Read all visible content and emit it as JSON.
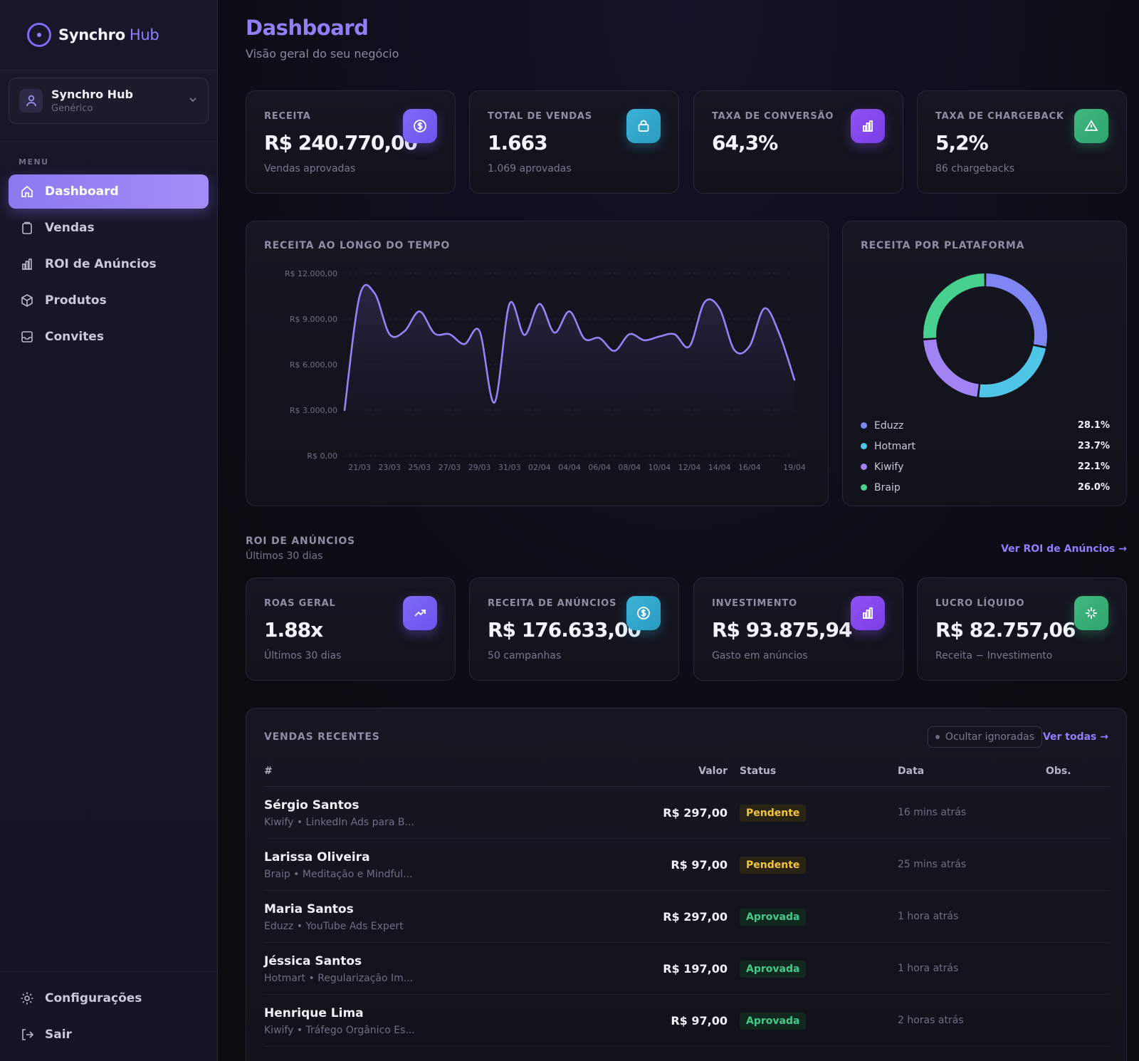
{
  "brand": {
    "name": "Synchro",
    "suffix": "Hub"
  },
  "workspace": {
    "name": "Synchro Hub",
    "type": "Genérico"
  },
  "sidebar": {
    "menu_label": "MENU",
    "items": [
      {
        "label": "Dashboard",
        "icon": "home-icon",
        "active": true
      },
      {
        "label": "Vendas",
        "icon": "clipboard-icon"
      },
      {
        "label": "ROI de Anúncios",
        "icon": "bar-chart-icon"
      },
      {
        "label": "Produtos",
        "icon": "box-icon"
      },
      {
        "label": "Convites",
        "icon": "inbox-icon"
      }
    ],
    "bottom": [
      {
        "label": "Configurações",
        "icon": "gear-icon"
      },
      {
        "label": "Sair",
        "icon": "logout-icon"
      }
    ]
  },
  "header": {
    "title": "Dashboard",
    "subtitle": "Visão geral do seu negócio"
  },
  "stats": [
    {
      "label": "RECEITA",
      "value": "R$ 240.770,00",
      "sub": "Vendas aprovadas",
      "icon": "dollar-icon",
      "color": "#7460f3"
    },
    {
      "label": "TOTAL DE VENDAS",
      "value": "1.663",
      "sub": "1.069 aprovadas",
      "icon": "bag-icon",
      "color": "#33a8cf"
    },
    {
      "label": "TAXA DE CONVERSÃO",
      "value": "64,3%",
      "sub": "",
      "icon": "bar-chart-icon",
      "color": "#8548ee"
    },
    {
      "label": "TAXA DE CHARGEBACK",
      "value": "5,2%",
      "sub": "86 chargebacks",
      "icon": "alert-triangle-icon",
      "color": "#36ae76"
    }
  ],
  "revenue_chart": {
    "title": "RECEITA AO LONGO DO TEMPO",
    "y_ticks": [
      "R$ 12.000,00",
      "R$ 9.000,00",
      "R$ 6.000,00",
      "R$ 3.000,00",
      "R$ 0,00"
    ],
    "x_ticks": [
      "21/03",
      "23/03",
      "25/03",
      "27/03",
      "29/03",
      "31/03",
      "02/04",
      "04/04",
      "06/04",
      "08/04",
      "10/04",
      "12/04",
      "14/04",
      "16/04",
      "19/04"
    ],
    "line_color": "#8f85f5"
  },
  "platform_chart": {
    "title": "RECEITA POR PLATAFORMA",
    "items": [
      {
        "name": "Eduzz",
        "pct": "28.1%",
        "color": "#7f86f4"
      },
      {
        "name": "Hotmart",
        "pct": "23.7%",
        "color": "#4fc6e8"
      },
      {
        "name": "Kiwify",
        "pct": "22.1%",
        "color": "#a283f4"
      },
      {
        "name": "Braip",
        "pct": "26.0%",
        "color": "#47d08e"
      }
    ]
  },
  "chart_data": [
    {
      "type": "area",
      "title": "RECEITA AO LONGO DO TEMPO",
      "xlabel": "",
      "ylabel": "",
      "ylim": [
        0,
        12000
      ],
      "x": [
        "20/03",
        "21/03",
        "22/03",
        "23/03",
        "24/03",
        "25/03",
        "26/03",
        "27/03",
        "28/03",
        "29/03",
        "30/03",
        "31/03",
        "01/04",
        "02/04",
        "03/04",
        "04/04",
        "05/04",
        "06/04",
        "07/04",
        "08/04",
        "09/04",
        "10/04",
        "11/04",
        "12/04",
        "13/04",
        "14/04",
        "15/04",
        "16/04",
        "17/04",
        "18/04",
        "19/04"
      ],
      "series": [
        {
          "values": [
            3000,
            10500,
            10700,
            8000,
            8200,
            9500,
            8050,
            8000,
            7350,
            8200,
            3500,
            10000,
            7950,
            10000,
            8100,
            9500,
            7700,
            7750,
            6900,
            8000,
            7600,
            7850,
            8000,
            7200,
            10100,
            9700,
            6950,
            7200,
            9700,
            8000,
            5000
          ]
        }
      ],
      "grid": true
    },
    {
      "type": "pie",
      "title": "RECEITA POR PLATAFORMA",
      "categories": [
        "Eduzz",
        "Hotmart",
        "Kiwify",
        "Braip"
      ],
      "values": [
        28.1,
        23.7,
        22.1,
        26.0
      ]
    }
  ],
  "roi": {
    "title": "ROI DE ANÚNCIOS",
    "subtitle": "Últimos 30 dias",
    "link": "Ver ROI de Anúncios →",
    "cards": [
      {
        "label": "ROAS GERAL",
        "value": "1.88x",
        "sub": "Últimos 30 dias",
        "icon": "trending-up-icon",
        "color": "#7460f3"
      },
      {
        "label": "RECEITA DE ANÚNCIOS",
        "value": "R$ 176.633,00",
        "sub": "50 campanhas",
        "icon": "dollar-icon",
        "color": "#33a8cf"
      },
      {
        "label": "INVESTIMENTO",
        "value": "R$ 93.875,94",
        "sub": "Gasto em anúncios",
        "icon": "bar-chart-icon",
        "color": "#8548ee"
      },
      {
        "label": "LUCRO LÍQUIDO",
        "value": "R$ 82.757,06",
        "sub": "Receita − Investimento",
        "icon": "sparkle-icon",
        "color": "#36ae76"
      }
    ]
  },
  "sales": {
    "title": "VENDAS RECENTES",
    "toggle": "Ocultar ignoradas",
    "view_all": "Ver todas →",
    "columns": {
      "id": "#",
      "value": "Valor",
      "status": "Status",
      "date": "Data",
      "obs": "Obs."
    },
    "rows": [
      {
        "name": "Sérgio Santos",
        "sub": "Kiwify • LinkedIn Ads para B...",
        "value": "R$ 297,00",
        "status": "Pendente",
        "date": "16 mins atrás"
      },
      {
        "name": "Larissa Oliveira",
        "sub": "Braip • Meditação e Mindful...",
        "value": "R$ 97,00",
        "status": "Pendente",
        "date": "25 mins atrás"
      },
      {
        "name": "Maria Santos",
        "sub": "Eduzz • YouTube Ads Expert",
        "value": "R$ 297,00",
        "status": "Aprovada",
        "date": "1 hora atrás"
      },
      {
        "name": "Jéssica Santos",
        "sub": "Hotmart • Regularização Im...",
        "value": "R$ 197,00",
        "status": "Aprovada",
        "date": "1 hora atrás"
      },
      {
        "name": "Henrique Lima",
        "sub": "Kiwify • Tráfego Orgânico Es...",
        "value": "R$ 97,00",
        "status": "Aprovada",
        "date": "2 horas atrás"
      }
    ]
  }
}
